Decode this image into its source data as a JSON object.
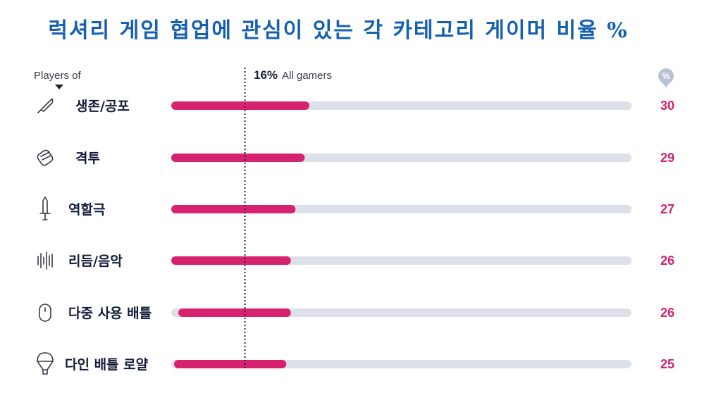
{
  "title": "럭셔리 게임 협업에 관심이 있는 각 카테고리 게이머 비율 %",
  "header": {
    "players_of": "Players of",
    "average_value": "16%",
    "average_text": "All gamers",
    "pct_badge": "%"
  },
  "colors": {
    "bar": "#d6226f",
    "track": "#dde0e8",
    "title": "#1560b0",
    "value": "#d6226f"
  },
  "chart_data": {
    "type": "bar",
    "orientation": "horizontal",
    "title": "럭셔리 게임 협업에 관심이 있는 각 카테고리 게이머 비율 %",
    "categories": [
      "생존/공포",
      "격투",
      "역할극",
      "리듬/음악",
      "다중 사용 배틀",
      "다인 배틀 로얄"
    ],
    "icons": [
      "knife-icon",
      "fist-icon",
      "sword-icon",
      "sound-wave-icon",
      "mouse-icon",
      "parachute-icon"
    ],
    "values": [
      30,
      29,
      27,
      26,
      26,
      25
    ],
    "reference_line": {
      "value": 16,
      "label": "All gamers"
    },
    "xlim": [
      0,
      100
    ],
    "unit": "%"
  }
}
